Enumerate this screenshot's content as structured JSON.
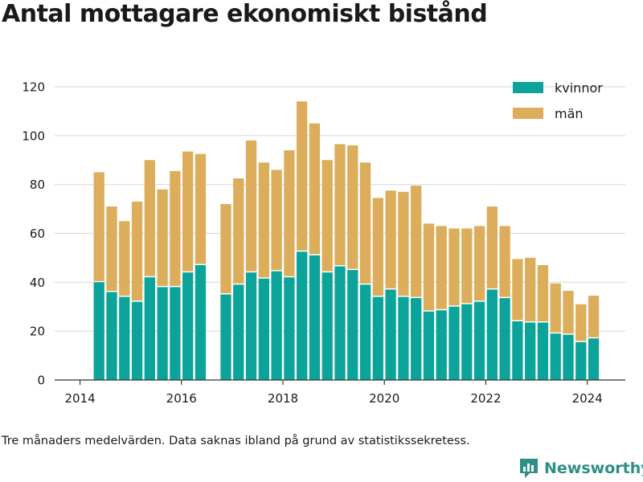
{
  "header": {
    "title": "Antal mottagare ekonomiskt bistånd"
  },
  "footer": {
    "note": "Tre månaders medelvärden. Data saknas ibland på grund av statistikssekretess.",
    "brand": "Newsworthy"
  },
  "colors": {
    "kvinnor": "#0ba39a",
    "man": "#dcad5a",
    "grid": "#dcdcdc",
    "axis": "#333333"
  },
  "chart_data": {
    "type": "bar",
    "stacked": true,
    "title": "Antal mottagare ekonomiskt bistånd",
    "xlim": [
      2013.5,
      2024.75
    ],
    "ylim": [
      0,
      120
    ],
    "xticks": [
      2014,
      2016,
      2018,
      2020,
      2022,
      2024
    ],
    "yticks": [
      0,
      20,
      40,
      60,
      80,
      100,
      120
    ],
    "legend_position": "top-right",
    "grid": true,
    "x": [
      2014.375,
      2014.625,
      2014.875,
      2015.125,
      2015.375,
      2015.625,
      2015.875,
      2016.125,
      2016.375,
      2016.875,
      2017.125,
      2017.375,
      2017.625,
      2017.875,
      2018.125,
      2018.375,
      2018.625,
      2018.875,
      2019.125,
      2019.375,
      2019.625,
      2019.875,
      2020.125,
      2020.375,
      2020.625,
      2020.875,
      2021.125,
      2021.375,
      2021.625,
      2021.875,
      2022.125,
      2022.375,
      2022.625,
      2022.875,
      2023.125,
      2023.375,
      2023.625,
      2023.875,
      2024.125
    ],
    "series": [
      {
        "name": "kvinnor",
        "values": [
          40,
          36,
          34,
          32,
          42,
          38,
          38,
          44,
          47,
          35,
          39,
          44,
          41.5,
          44.5,
          42,
          52.5,
          51,
          44,
          46.5,
          45,
          39,
          34,
          37,
          34,
          33.5,
          28,
          28.5,
          30,
          31,
          32,
          37,
          33.5,
          24,
          23.5,
          23.5,
          19,
          18.5,
          15.5,
          17
        ]
      },
      {
        "name": "män",
        "values": [
          45,
          35,
          31,
          41,
          48,
          40,
          47.5,
          49.5,
          45.5,
          37,
          43.5,
          54,
          47.5,
          41.5,
          52,
          61.5,
          54,
          46,
          50,
          51,
          50,
          40.5,
          40.5,
          43,
          46,
          36,
          34.5,
          32,
          31,
          31,
          34,
          29.5,
          25.5,
          26.5,
          23.5,
          20.5,
          18,
          15.5,
          17.5
        ]
      }
    ]
  }
}
